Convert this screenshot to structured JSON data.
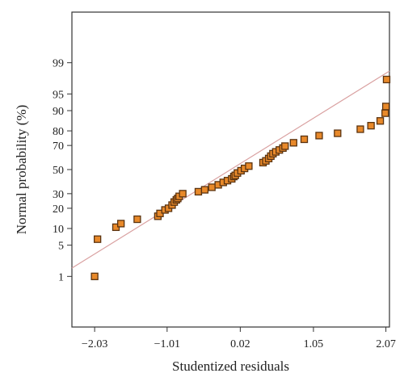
{
  "chart_data": {
    "type": "scatter",
    "title": "",
    "xlabel": "Studentized residuals",
    "ylabel": "Normal probability (%)",
    "xlim": [
      -2.35,
      2.12
    ],
    "ylim": [
      0.03,
      99.97
    ],
    "y_scale": "probit",
    "grid": false,
    "legend": "none",
    "x_ticks": [
      {
        "value": -2.03,
        "label": "−2.03"
      },
      {
        "value": -1.01,
        "label": "−1.01"
      },
      {
        "value": 0.02,
        "label": "0.02"
      },
      {
        "value": 1.05,
        "label": "1.05"
      },
      {
        "value": 2.07,
        "label": "2.07"
      }
    ],
    "y_ticks": [
      {
        "value": 1,
        "label": "1"
      },
      {
        "value": 5,
        "label": "5"
      },
      {
        "value": 10,
        "label": "10"
      },
      {
        "value": 20,
        "label": "20"
      },
      {
        "value": 30,
        "label": "30"
      },
      {
        "value": 50,
        "label": "50"
      },
      {
        "value": 70,
        "label": "70"
      },
      {
        "value": 80,
        "label": "80"
      },
      {
        "value": 90,
        "label": "90"
      },
      {
        "value": 95,
        "label": "95"
      },
      {
        "value": 99,
        "label": "99"
      }
    ],
    "reference_line": {
      "points": [
        [
          -2.35,
          1.6
        ],
        [
          2.12,
          98.4
        ]
      ],
      "color": "#d9a0a0"
    },
    "marker_color": "#e8892a",
    "marker_edge": "#5a3310",
    "points": [
      [
        -2.03,
        1.0
      ],
      [
        -1.99,
        6.5
      ],
      [
        -1.73,
        10.5
      ],
      [
        -1.66,
        12.0
      ],
      [
        -1.43,
        14.0
      ],
      [
        -1.14,
        15.5
      ],
      [
        -1.11,
        17.0
      ],
      [
        -1.04,
        19.0
      ],
      [
        -0.99,
        20.0
      ],
      [
        -0.94,
        22.0
      ],
      [
        -0.91,
        24.0
      ],
      [
        -0.88,
        25.5
      ],
      [
        -0.86,
        26.5
      ],
      [
        -0.84,
        28.0
      ],
      [
        -0.79,
        30.0
      ],
      [
        -0.57,
        31.5
      ],
      [
        -0.48,
        33.0
      ],
      [
        -0.38,
        35.0
      ],
      [
        -0.29,
        37.0
      ],
      [
        -0.22,
        39.0
      ],
      [
        -0.16,
        40.5
      ],
      [
        -0.1,
        42.0
      ],
      [
        -0.07,
        44.0
      ],
      [
        -0.05,
        45.0
      ],
      [
        -0.02,
        47.0
      ],
      [
        0.03,
        49.0
      ],
      [
        0.08,
        51.0
      ],
      [
        0.14,
        53.0
      ],
      [
        0.34,
        56.0
      ],
      [
        0.38,
        57.5
      ],
      [
        0.42,
        59.5
      ],
      [
        0.45,
        61.5
      ],
      [
        0.48,
        63.5
      ],
      [
        0.52,
        65.0
      ],
      [
        0.57,
        66.5
      ],
      [
        0.62,
        68.0
      ],
      [
        0.65,
        69.5
      ],
      [
        0.77,
        72.0
      ],
      [
        0.92,
        74.5
      ],
      [
        1.13,
        77.0
      ],
      [
        1.39,
        78.5
      ],
      [
        1.71,
        81.0
      ],
      [
        1.86,
        83.0
      ],
      [
        1.99,
        85.5
      ],
      [
        2.06,
        89.0
      ],
      [
        2.07,
        91.5
      ],
      [
        2.08,
        97.5
      ]
    ]
  }
}
